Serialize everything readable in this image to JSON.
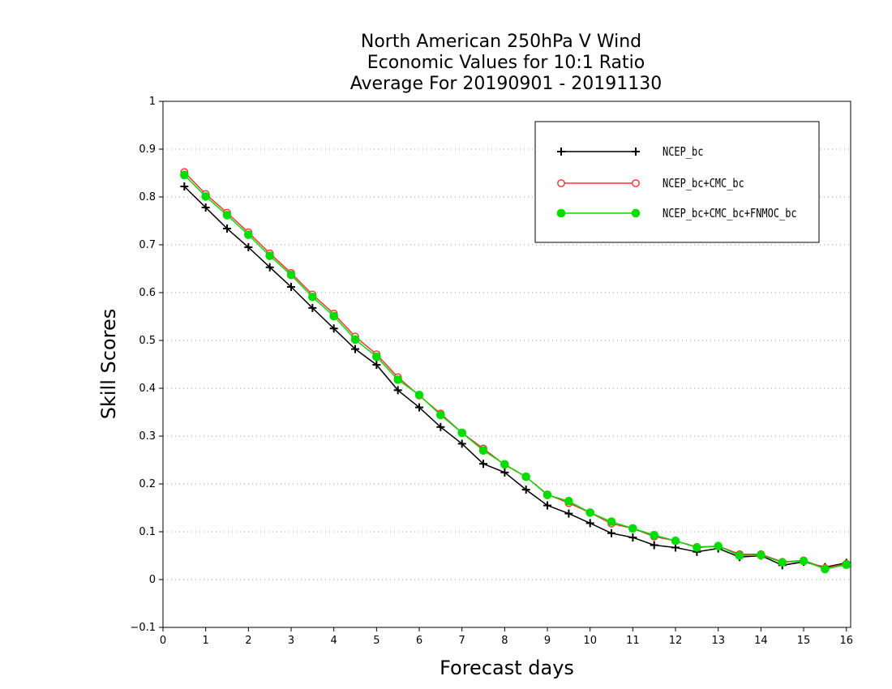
{
  "chart_data": {
    "type": "line",
    "title_lines": [
      "North American 250hPa V Wind",
      "Economic Values for 10:1 Ratio",
      "Average For 20190901 - 20191130"
    ],
    "xlabel": "Forecast days",
    "ylabel": "Skill Scores",
    "xlim": [
      0,
      16.1
    ],
    "ylim": [
      -0.1,
      1
    ],
    "x_ticks": [
      0,
      1,
      2,
      3,
      4,
      5,
      6,
      7,
      8,
      9,
      10,
      11,
      12,
      13,
      14,
      15,
      16
    ],
    "y_ticks": [
      -0.1,
      0,
      0.1,
      0.2,
      0.3,
      0.4,
      0.5,
      0.6,
      0.7,
      0.8,
      0.9,
      1
    ],
    "y_tick_labels": [
      "−0.1",
      "0",
      "0.1",
      "0.2",
      "0.3",
      "0.4",
      "0.5",
      "0.6",
      "0.7",
      "0.8",
      "0.9",
      "1"
    ],
    "grid": "horizontal dotted",
    "legend_position": "top-right",
    "x": [
      0.5,
      1,
      1.5,
      2,
      2.5,
      3,
      3.5,
      4,
      4.5,
      5,
      5.5,
      6,
      6.5,
      7,
      7.5,
      8,
      8.5,
      9,
      9.5,
      10,
      10.5,
      11,
      11.5,
      12,
      12.5,
      13,
      13.5,
      14,
      14.5,
      15,
      15.5,
      16
    ],
    "series": [
      {
        "name": "NCEP_bc",
        "color": "#000000",
        "marker": "plus",
        "values": [
          0.822,
          0.778,
          0.734,
          0.695,
          0.653,
          0.612,
          0.568,
          0.525,
          0.482,
          0.449,
          0.396,
          0.36,
          0.319,
          0.284,
          0.242,
          0.224,
          0.188,
          0.155,
          0.138,
          0.118,
          0.097,
          0.088,
          0.072,
          0.067,
          0.058,
          0.065,
          0.047,
          0.05,
          0.03,
          0.037,
          0.026,
          0.035
        ]
      },
      {
        "name": "NCEP_bc+CMC_bc",
        "color": "#ff3030",
        "marker": "open-circle",
        "values": [
          0.852,
          0.806,
          0.767,
          0.726,
          0.682,
          0.641,
          0.596,
          0.556,
          0.508,
          0.471,
          0.423,
          0.385,
          0.347,
          0.307,
          0.274,
          0.24,
          0.215,
          0.178,
          0.16,
          0.14,
          0.117,
          0.107,
          0.09,
          0.081,
          0.068,
          0.07,
          0.053,
          0.053,
          0.037,
          0.04,
          0.024,
          0.033
        ]
      },
      {
        "name": "NCEP_bc+CMC_bc+FNMOC_bc",
        "color": "#00dd00",
        "marker": "filled-circle",
        "values": [
          0.846,
          0.801,
          0.762,
          0.721,
          0.677,
          0.637,
          0.591,
          0.551,
          0.502,
          0.466,
          0.418,
          0.386,
          0.344,
          0.307,
          0.27,
          0.241,
          0.215,
          0.177,
          0.164,
          0.14,
          0.121,
          0.107,
          0.093,
          0.081,
          0.067,
          0.07,
          0.05,
          0.051,
          0.036,
          0.039,
          0.022,
          0.031
        ]
      }
    ]
  }
}
